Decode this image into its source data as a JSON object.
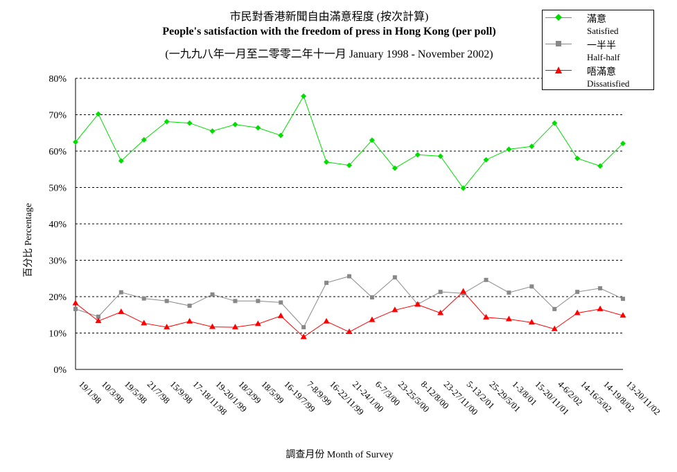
{
  "chart_data": {
    "type": "line",
    "title_cn": "市民對香港新聞自由滿意程度 (按次計算)",
    "title_en": "People's satisfaction with the freedom of press in Hong Kong (per poll)",
    "subtitle": "(一九九八年一月至二零零二年十一月 January 1998 - November 2002)",
    "xlabel": "調查月份 Month of Survey",
    "ylabel": "百分比 Percentage",
    "ylim": [
      0,
      80
    ],
    "yticks": [
      "0%",
      "10%",
      "20%",
      "30%",
      "40%",
      "50%",
      "60%",
      "70%",
      "80%"
    ],
    "grid": "horizontal dashed",
    "legend_position": "top-right",
    "categories": [
      "19/1/98",
      "10/3/98",
      "19/5/98",
      "21/7/98",
      "15/9/98",
      "17-18/11/98",
      "19-20/1/99",
      "18/3/99",
      "18/5/99",
      "16-19/7/99",
      "7-8/9/99",
      "16-22/11/99",
      "21-24/1/00",
      "6-7/3/00",
      "23-25/5/00",
      "8-12/8/00",
      "23-27/11/00",
      "5-13/2/01",
      "25-29/5/01",
      "1-3/8/01",
      "15-20/11/01",
      "4-6/2/02",
      "14-16/5/02",
      "14-19/8/02",
      "13-20/11/02"
    ],
    "series": [
      {
        "name_cn": "滿意",
        "name_en": "Satisfied",
        "color": "#00dd00",
        "marker": "diamond",
        "values": [
          62.5,
          70.2,
          57.3,
          63.1,
          68.1,
          67.7,
          65.5,
          67.3,
          66.4,
          64.3,
          75.1,
          57.0,
          56.1,
          63.0,
          55.3,
          59.0,
          58.6,
          49.8,
          57.6,
          60.5,
          61.3,
          67.7,
          58.0,
          55.9,
          62.1
        ]
      },
      {
        "name_cn": "一半半",
        "name_en": "Half-half",
        "color": "#888888",
        "marker": "square",
        "values": [
          16.6,
          14.5,
          21.2,
          19.5,
          18.8,
          17.5,
          20.6,
          18.8,
          18.8,
          18.4,
          11.6,
          23.8,
          25.6,
          19.8,
          25.3,
          17.9,
          21.3,
          20.9,
          24.6,
          21.1,
          22.8,
          16.6,
          21.3,
          22.3,
          19.4
        ]
      },
      {
        "name_cn": "唔滿意",
        "name_en": "Dissatisfied",
        "color": "#ff0000",
        "marker": "triangle",
        "values": [
          18.2,
          13.3,
          15.8,
          12.7,
          11.6,
          13.2,
          11.7,
          11.6,
          12.5,
          14.7,
          8.9,
          13.2,
          10.3,
          13.6,
          16.3,
          17.8,
          15.5,
          21.4,
          14.3,
          13.8,
          12.9,
          11.1,
          15.5,
          16.6,
          14.8
        ]
      }
    ]
  }
}
